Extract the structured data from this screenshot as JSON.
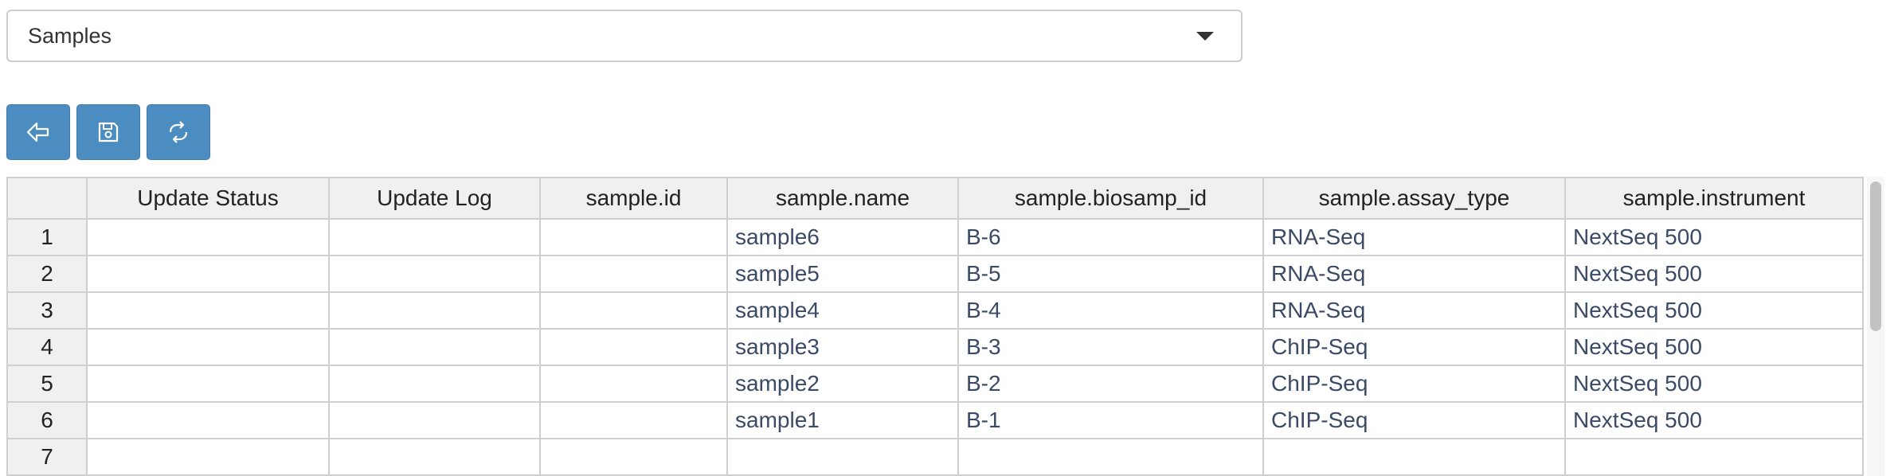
{
  "dataset_select": {
    "selected": "Samples"
  },
  "toolbar": {
    "buttons": [
      {
        "icon": "back-arrow-icon"
      },
      {
        "icon": "save-icon"
      },
      {
        "icon": "refresh-icon"
      }
    ]
  },
  "grid": {
    "columns": [
      "",
      "Update Status",
      "Update Log",
      "sample.id",
      "sample.name",
      "sample.biosamp_id",
      "sample.assay_type",
      "sample.instrument"
    ],
    "rows": [
      {
        "num": "1",
        "cells": [
          "",
          "",
          "",
          "sample6",
          "B-6",
          "RNA-Seq",
          "NextSeq 500"
        ]
      },
      {
        "num": "2",
        "cells": [
          "",
          "",
          "",
          "sample5",
          "B-5",
          "RNA-Seq",
          "NextSeq 500"
        ]
      },
      {
        "num": "3",
        "cells": [
          "",
          "",
          "",
          "sample4",
          "B-4",
          "RNA-Seq",
          "NextSeq 500"
        ]
      },
      {
        "num": "4",
        "cells": [
          "",
          "",
          "",
          "sample3",
          "B-3",
          "ChIP-Seq",
          "NextSeq 500"
        ]
      },
      {
        "num": "5",
        "cells": [
          "",
          "",
          "",
          "sample2",
          "B-2",
          "ChIP-Seq",
          "NextSeq 500"
        ]
      },
      {
        "num": "6",
        "cells": [
          "",
          "",
          "",
          "sample1",
          "B-1",
          "ChIP-Seq",
          "NextSeq 500"
        ]
      },
      {
        "num": "7",
        "cells": [
          "",
          "",
          "",
          "",
          "",
          "",
          ""
        ]
      }
    ]
  },
  "colors": {
    "button_bg": "#4b8dc0",
    "header_bg": "#f0f0f0",
    "cell_text": "#3b4a66",
    "grid_border": "#cfcfcf"
  }
}
